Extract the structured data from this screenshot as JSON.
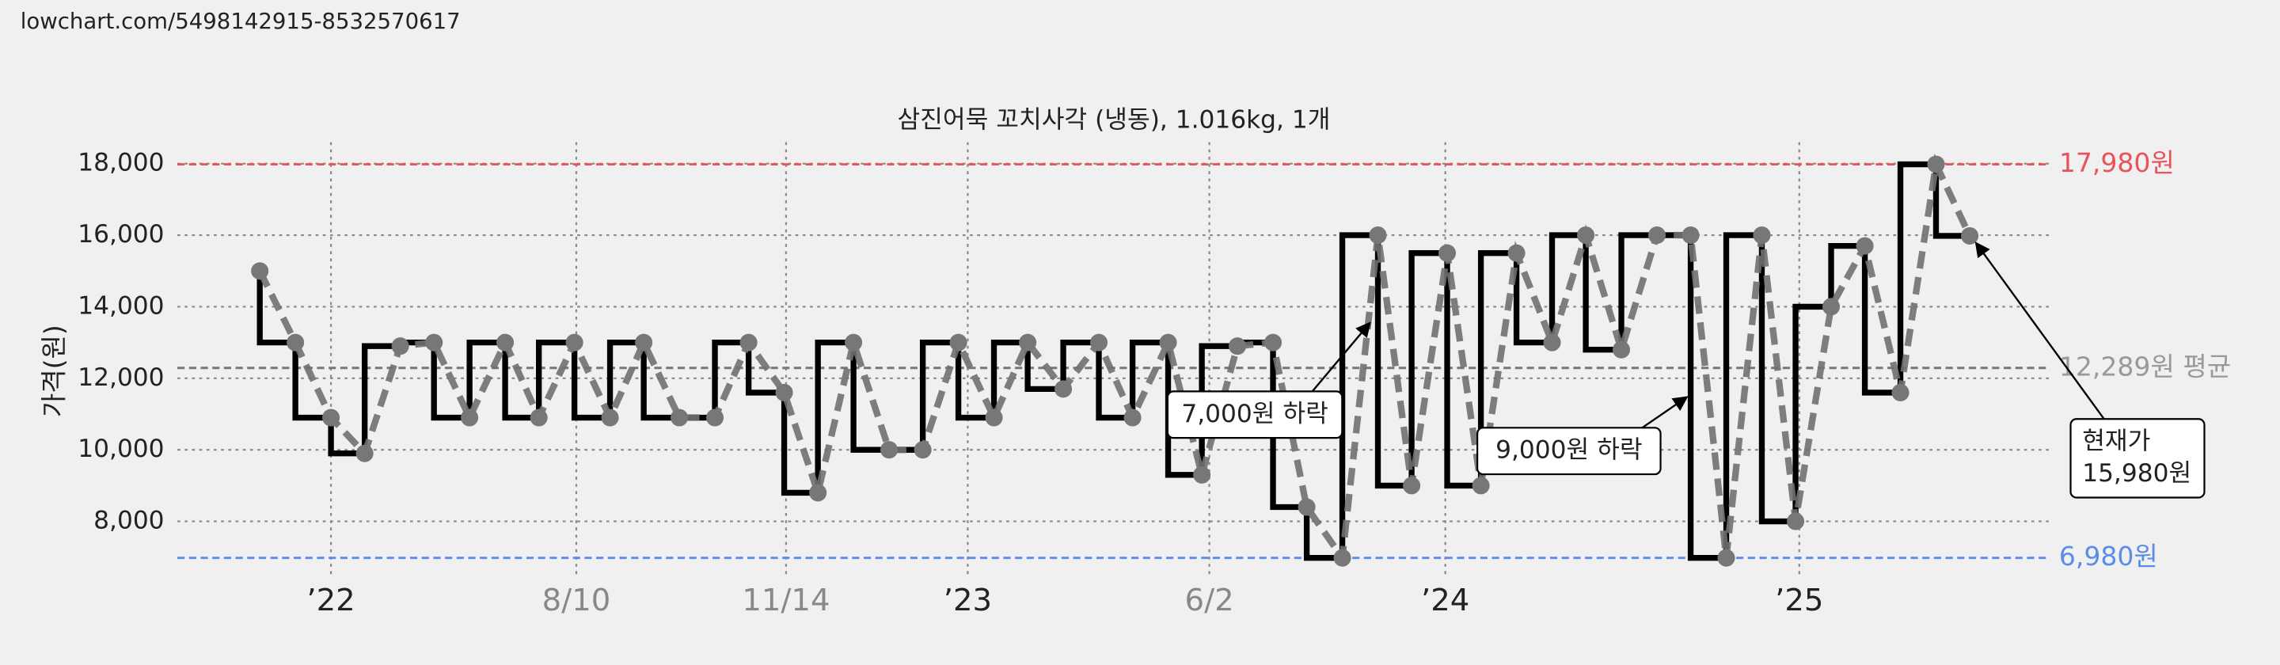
{
  "url": "lowchart.com/5498142915-8532570617",
  "chart_data": {
    "type": "step-line",
    "title": "삼진어묵 꼬치사각 (냉동), 1.016kg, 1개",
    "y_label": "가격(원)",
    "xlim": [
      0,
      100
    ],
    "ylim": [
      6500,
      18600
    ],
    "xticks": [
      {
        "value": 8.2,
        "label": "’22",
        "color": "#222222"
      },
      {
        "value": 21.3,
        "label": "8/10",
        "color": "#888888"
      },
      {
        "value": 32.5,
        "label": "11/14",
        "color": "#888888"
      },
      {
        "value": 42.2,
        "label": "’23",
        "color": "#222222"
      },
      {
        "value": 55.1,
        "label": "6/2",
        "color": "#888888"
      },
      {
        "value": 67.7,
        "label": "’24",
        "color": "#222222"
      },
      {
        "value": 86.6,
        "label": "’25",
        "color": "#222222"
      }
    ],
    "yticks": [
      {
        "value": 8000,
        "label": "8,000"
      },
      {
        "value": 10000,
        "label": "10,000"
      },
      {
        "value": 12000,
        "label": "12,000"
      },
      {
        "value": 14000,
        "label": "14,000"
      },
      {
        "value": 16000,
        "label": "16,000"
      },
      {
        "value": 18000,
        "label": "18,000"
      }
    ],
    "grid": true,
    "series": [
      {
        "step_color": "#000000",
        "color": "#707070",
        "x": [
          4.4,
          6.3,
          8.2,
          10.0,
          11.9,
          13.7,
          15.6,
          17.5,
          19.3,
          21.2,
          23.1,
          24.9,
          26.8,
          28.7,
          30.5,
          32.4,
          34.2,
          36.1,
          38.0,
          39.8,
          41.7,
          43.6,
          45.4,
          47.3,
          49.2,
          51.0,
          52.9,
          54.7,
          56.6,
          58.5,
          60.3,
          62.2,
          64.1,
          65.9,
          67.8,
          69.6,
          71.5,
          73.4,
          75.2,
          77.1,
          79.0,
          80.8,
          82.7,
          84.6,
          86.4,
          88.3,
          90.1,
          92.0,
          93.9,
          95.7
        ],
        "values": [
          15000,
          13000,
          10900,
          9900,
          12900,
          13000,
          10900,
          13000,
          10900,
          13000,
          10900,
          13000,
          10900,
          10900,
          13000,
          11600,
          8800,
          13000,
          10000,
          10000,
          13000,
          10900,
          13000,
          11700,
          13000,
          10900,
          13000,
          9300,
          12900,
          13000,
          8400,
          6980,
          16000,
          9000,
          15500,
          9000,
          15500,
          13000,
          16000,
          12800,
          16000,
          16000,
          6980,
          16000,
          8000,
          14000,
          15700,
          11600,
          17980,
          15980
        ]
      }
    ],
    "reference_lines": [
      {
        "value": 17980,
        "label": "17,980원",
        "color": "#e8545a",
        "text_color": "#e8545a"
      },
      {
        "value": 12289,
        "label": "12,289원 평균",
        "color": "#777777",
        "text_color": "#999999"
      },
      {
        "value": 6980,
        "label": "6,980원",
        "color": "#5b8de8",
        "text_color": "#5b8de8"
      }
    ],
    "annotations": [
      {
        "lines": [
          "7,000원 하락"
        ]
      },
      {
        "lines": [
          "9,000원 하락"
        ]
      },
      {
        "lines": [
          "현재가",
          "15,980원"
        ]
      }
    ]
  }
}
